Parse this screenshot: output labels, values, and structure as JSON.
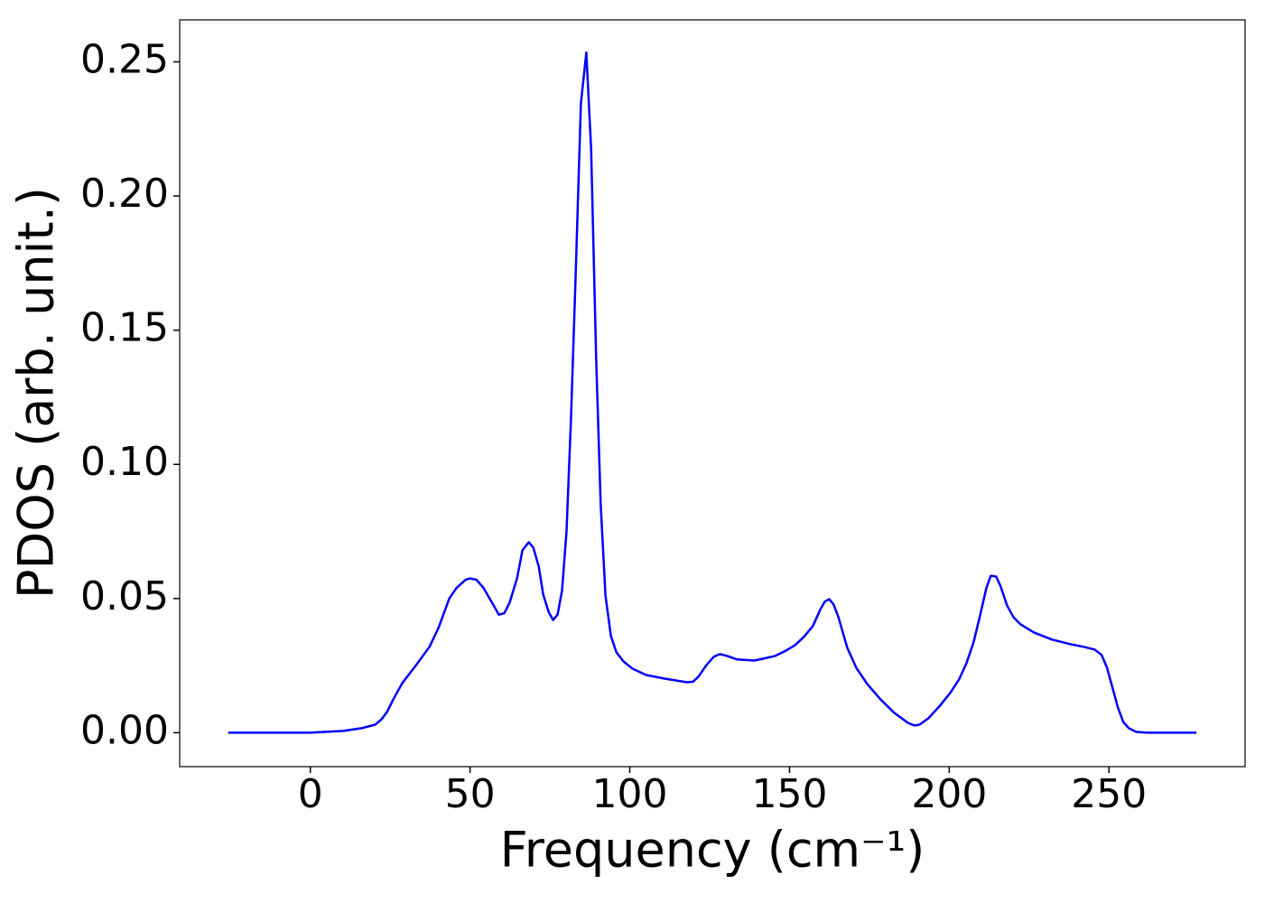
{
  "chart_data": {
    "type": "line",
    "x_label": "Frequency (cm⁻¹)",
    "y_label": "PDOS (arb. unit.)",
    "series": [
      {
        "color": "#0000ff",
        "x": [
          -25.7,
          0,
          10.5,
          16.1,
          20.3,
          22.3,
          24,
          26,
          28.8,
          33,
          37.3,
          40.1,
          43.5,
          45.8,
          48.6,
          50,
          52,
          54.2,
          57.1,
          59,
          60.7,
          62.4,
          64.7,
          66.4,
          68.4,
          69.8,
          71.5,
          72.9,
          74.6,
          76,
          77.4,
          78.8,
          80.2,
          81.6,
          83.1,
          84.7,
          86.4,
          87.9,
          89.5,
          90.9,
          92.4,
          94.1,
          95.8,
          98,
          100.8,
          105.1,
          110.7,
          117.8,
          119.8,
          121.5,
          124,
          126.3,
          128.2,
          130.5,
          133.6,
          139,
          141.8,
          145.5,
          148.9,
          151.7,
          154.5,
          157.3,
          159.6,
          161,
          162.4,
          163.8,
          165.3,
          168.1,
          170.9,
          174.3,
          178.5,
          182.8,
          187,
          189,
          190.7,
          193.5,
          196.9,
          200.3,
          203.1,
          205.4,
          207.6,
          209.6,
          211.6,
          213,
          214.7,
          216.1,
          218.1,
          220.1,
          222.3,
          226.6,
          232.2,
          237.9,
          242.1,
          245.5,
          247.7,
          249.4,
          251.1,
          252.8,
          254.5,
          256.2,
          258.5,
          261.9,
          277.4
        ],
        "values": [
          0,
          0,
          0.0007,
          0.0017,
          0.003,
          0.005,
          0.0077,
          0.0125,
          0.0185,
          0.025,
          0.032,
          0.039,
          0.05,
          0.054,
          0.057,
          0.0575,
          0.057,
          0.054,
          0.048,
          0.044,
          0.0445,
          0.0485,
          0.0575,
          0.068,
          0.071,
          0.069,
          0.062,
          0.0515,
          0.045,
          0.042,
          0.044,
          0.053,
          0.075,
          0.117,
          0.172,
          0.2345,
          0.2535,
          0.2175,
          0.1385,
          0.085,
          0.051,
          0.036,
          0.03,
          0.0266,
          0.0239,
          0.0215,
          0.0202,
          0.0188,
          0.019,
          0.0209,
          0.0252,
          0.0283,
          0.0293,
          0.0286,
          0.0273,
          0.0269,
          0.0276,
          0.0286,
          0.0306,
          0.0326,
          0.0357,
          0.0397,
          0.0458,
          0.0488,
          0.0498,
          0.0478,
          0.0431,
          0.0316,
          0.0242,
          0.0182,
          0.0124,
          0.0074,
          0.0037,
          0.0027,
          0.003,
          0.0054,
          0.0098,
          0.0148,
          0.0199,
          0.0259,
          0.0336,
          0.0434,
          0.0538,
          0.0585,
          0.0582,
          0.0545,
          0.0474,
          0.0431,
          0.0404,
          0.0373,
          0.0347,
          0.033,
          0.032,
          0.031,
          0.029,
          0.0242,
          0.0168,
          0.0094,
          0.004,
          0.0017,
          0.0003,
          0,
          0
        ]
      }
    ],
    "xlim": [
      -40.9,
      292.6
    ],
    "ylim": [
      -0.01265,
      0.26565
    ],
    "xticks": [
      0,
      50,
      100,
      150,
      200,
      250
    ],
    "yticks": [
      {
        "value": 0,
        "label": "0.00"
      },
      {
        "value": 0.05,
        "label": "0.05"
      },
      {
        "value": 0.1,
        "label": "0.10"
      },
      {
        "value": 0.15,
        "label": "0.15"
      },
      {
        "value": 0.2,
        "label": "0.20"
      },
      {
        "value": 0.25,
        "label": "0.25"
      }
    ],
    "grid": false
  }
}
